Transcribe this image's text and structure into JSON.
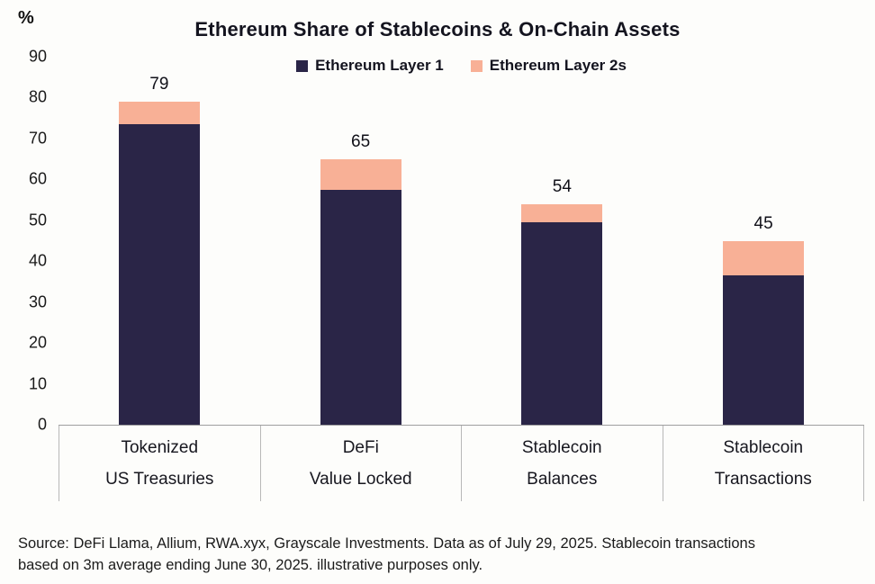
{
  "title": "Ethereum Share of Stablecoins & On-Chain Assets",
  "y_axis": {
    "unit_label": "%",
    "ticks": [
      0,
      10,
      20,
      30,
      40,
      50,
      60,
      70,
      80,
      90
    ],
    "max": 90
  },
  "legend": [
    {
      "label": "Ethereum Layer 1",
      "color": "#2a2547"
    },
    {
      "label": "Ethereum Layer 2s",
      "color": "#f8b096"
    }
  ],
  "chart_data": {
    "type": "bar",
    "stacked": true,
    "title": "Ethereum Share of Stablecoins & On-Chain Assets",
    "categories": [
      "Tokenized US Treasuries",
      "DeFi Value Locked",
      "Stablecoin Balances",
      "Stablecoin Transactions"
    ],
    "category_lines": [
      [
        "Tokenized",
        "US Treasuries"
      ],
      [
        "DeFi",
        "Value Locked"
      ],
      [
        "Stablecoin",
        "Balances"
      ],
      [
        "Stablecoin",
        "Transactions"
      ]
    ],
    "series": [
      {
        "name": "Ethereum Layer 1",
        "color": "#2a2547",
        "values": [
          73.5,
          57.5,
          49.5,
          36.5
        ]
      },
      {
        "name": "Ethereum Layer 2s",
        "color": "#f8b096",
        "values": [
          5.5,
          7.5,
          4.5,
          8.5
        ]
      }
    ],
    "totals": [
      79,
      65,
      54,
      45
    ],
    "ylabel": "%",
    "ylim": [
      0,
      90
    ],
    "grid": false,
    "legend_position": "top"
  },
  "source_note": "Source: DeFi Llama, Allium, RWA.xyx, Grayscale Investments. Data as of July 29, 2025. Stablecoin transactions based on 3m average ending June 30, 2025. illustrative purposes only."
}
